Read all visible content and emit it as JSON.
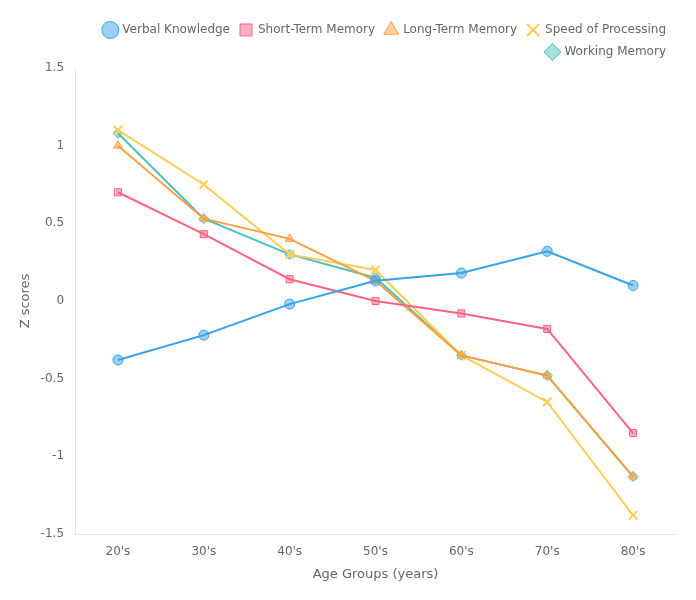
{
  "chart_data": {
    "type": "line",
    "categories": [
      "20's",
      "30's",
      "40's",
      "50's",
      "60's",
      "70's",
      "80's"
    ],
    "series": [
      {
        "name": "Verbal Knowledge",
        "marker": "circle",
        "values": [
          -0.38,
          -0.22,
          -0.02,
          0.13,
          0.18,
          0.32,
          0.1
        ]
      },
      {
        "name": "Short-Term Memory",
        "marker": "square",
        "values": [
          0.7,
          0.43,
          0.14,
          0.0,
          -0.08,
          -0.18,
          -0.85
        ]
      },
      {
        "name": "Long-Term Memory",
        "marker": "triangle",
        "values": [
          1.0,
          0.53,
          0.4,
          0.13,
          -0.35,
          -0.48,
          -1.13
        ]
      },
      {
        "name": "Speed of Processing",
        "marker": "cross",
        "values": [
          1.1,
          0.75,
          0.3,
          0.2,
          -0.35,
          -0.65,
          -1.38
        ]
      },
      {
        "name": "Working Memory",
        "marker": "diamond",
        "values": [
          1.08,
          0.53,
          0.3,
          0.15,
          -0.35,
          -0.48,
          -1.13
        ]
      }
    ],
    "xlabel": "Age Groups (years)",
    "ylabel": "Z scores",
    "ylim": [
      -1.5,
      1.5
    ],
    "yticks": [
      -1.5,
      -1,
      -0.5,
      0,
      0.5,
      1,
      1.5
    ],
    "grid": false,
    "legend": "upper right"
  }
}
